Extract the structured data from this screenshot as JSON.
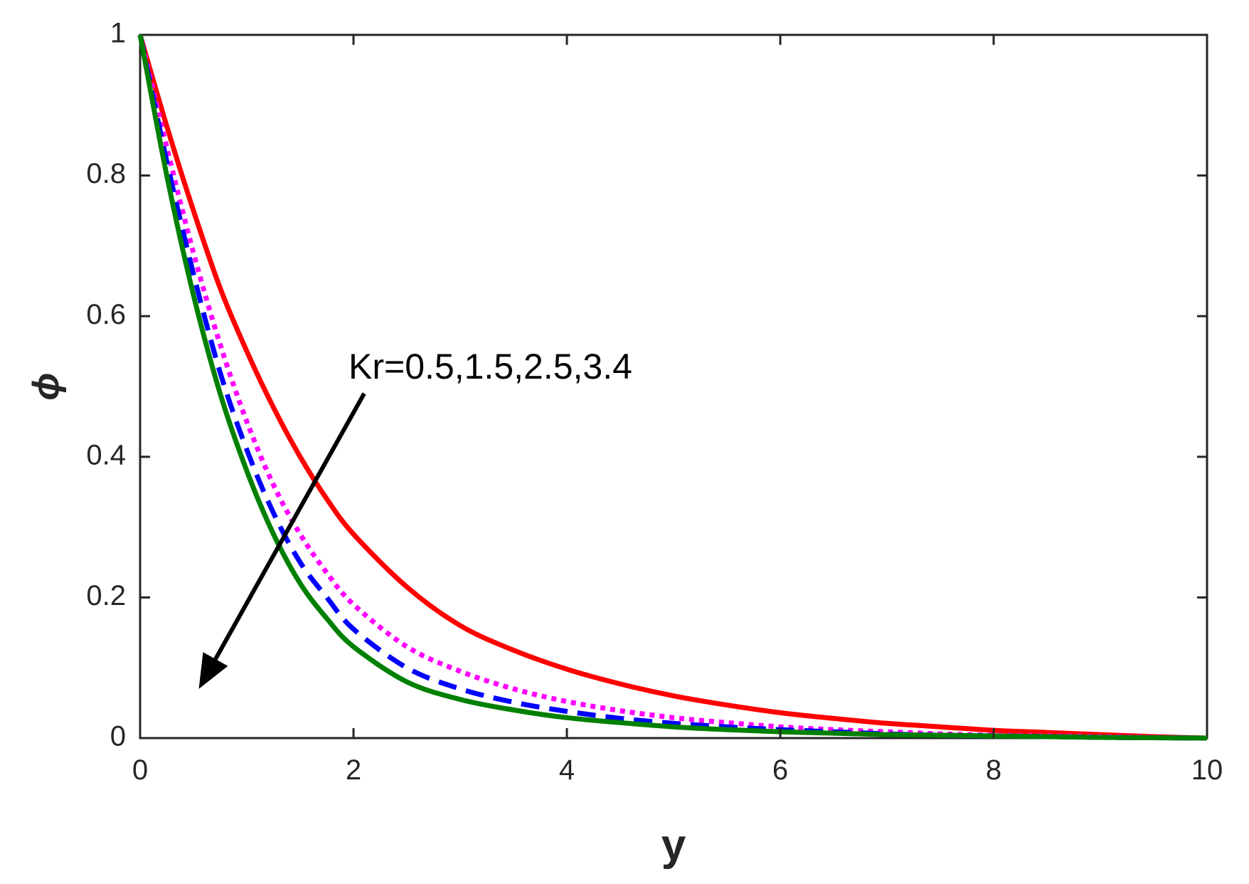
{
  "chart_data": {
    "type": "line",
    "title": "",
    "xlabel": "y",
    "ylabel": "ϕ",
    "xlim": [
      0,
      10
    ],
    "ylim": [
      0,
      1
    ],
    "xticks": [
      "0",
      "2",
      "4",
      "6",
      "8",
      "10"
    ],
    "yticks": [
      "0",
      "0.2",
      "0.4",
      "0.6",
      "0.8",
      "1"
    ],
    "grid": false,
    "legend": "none",
    "annotation": {
      "text": "Kr=0.5,1.5,2.5,3.4",
      "arrow_from": [
        2.1,
        0.49
      ],
      "arrow_to": [
        0.55,
        0.07
      ]
    },
    "x": [
      0,
      0.25,
      0.5,
      0.75,
      1,
      1.25,
      1.5,
      1.75,
      2,
      2.5,
      3,
      3.5,
      4,
      4.5,
      5,
      5.5,
      6,
      6.5,
      7,
      7.5,
      8,
      8.5,
      9,
      9.5,
      10
    ],
    "series": [
      {
        "color": "#ff0000",
        "style": "solid",
        "values": [
          1.0,
          0.87,
          0.75,
          0.64,
          0.55,
          0.47,
          0.4,
          0.34,
          0.29,
          0.215,
          0.16,
          0.125,
          0.098,
          0.077,
          0.06,
          0.047,
          0.036,
          0.028,
          0.021,
          0.016,
          0.011,
          0.008,
          0.005,
          0.002,
          0.0
        ]
      },
      {
        "color": "#ff00ff",
        "style": "dotted",
        "values": [
          1.0,
          0.84,
          0.69,
          0.56,
          0.45,
          0.36,
          0.29,
          0.235,
          0.19,
          0.13,
          0.095,
          0.07,
          0.052,
          0.039,
          0.029,
          0.022,
          0.016,
          0.012,
          0.009,
          0.006,
          0.004,
          0.003,
          0.002,
          0.001,
          0.0
        ]
      },
      {
        "color": "#0000ff",
        "style": "dashed",
        "values": [
          1.0,
          0.82,
          0.66,
          0.52,
          0.41,
          0.32,
          0.25,
          0.2,
          0.155,
          0.1,
          0.07,
          0.051,
          0.038,
          0.028,
          0.021,
          0.016,
          0.012,
          0.009,
          0.006,
          0.004,
          0.003,
          0.002,
          0.001,
          0.0005,
          0.0
        ]
      },
      {
        "color": "#008000",
        "style": "solid",
        "values": [
          1.0,
          0.8,
          0.63,
          0.49,
          0.38,
          0.29,
          0.22,
          0.17,
          0.13,
          0.08,
          0.055,
          0.04,
          0.029,
          0.022,
          0.016,
          0.012,
          0.009,
          0.007,
          0.005,
          0.004,
          0.003,
          0.002,
          0.001,
          0.0005,
          0.0
        ]
      }
    ]
  }
}
